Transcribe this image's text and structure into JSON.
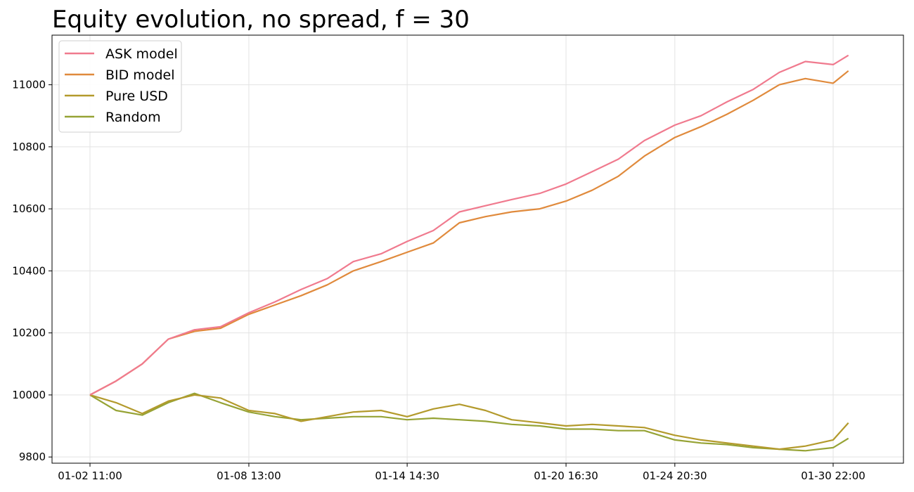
{
  "chart_data": {
    "type": "line",
    "title": "Equity evolution, no spread, f = 30",
    "xlabel": "",
    "ylabel": "",
    "x_ticks": [
      "01-02 11:00",
      "01-08 13:00",
      "01-14 14:30",
      "01-20 16:30",
      "01-24 20:30",
      "01-30 22:00"
    ],
    "y_ticks": [
      9800,
      10000,
      10200,
      10400,
      10600,
      10800,
      11000
    ],
    "ylim": [
      9780,
      11160
    ],
    "grid": true,
    "legend_position": "top-left",
    "series": [
      {
        "name": "ASK model",
        "color": "#f07a8e",
        "x": [
          "01-02 11:00",
          "01-03 11:00",
          "01-04 11:00",
          "01-05 11:00",
          "01-06 11:00",
          "01-07 11:00",
          "01-08 13:00",
          "01-09 13:00",
          "01-10 13:00",
          "01-11 13:00",
          "01-12 13:00",
          "01-13 14:30",
          "01-14 14:30",
          "01-15 14:30",
          "01-16 14:30",
          "01-17 14:30",
          "01-18 14:30",
          "01-19 16:30",
          "01-20 16:30",
          "01-21 16:30",
          "01-22 16:30",
          "01-23 16:30",
          "01-24 20:30",
          "01-25 20:30",
          "01-26 20:30",
          "01-27 20:30",
          "01-28 20:30",
          "01-29 20:30",
          "01-30 22:00",
          "01-31 12:00"
        ],
        "values": [
          10000,
          10045,
          10100,
          10180,
          10210,
          10220,
          10265,
          10300,
          10340,
          10375,
          10430,
          10455,
          10495,
          10530,
          10590,
          10610,
          10630,
          10650,
          10680,
          10720,
          10760,
          10820,
          10870,
          10900,
          10945,
          10985,
          11040,
          11075,
          11065,
          11095
        ]
      },
      {
        "name": "BID model",
        "color": "#e08a3c",
        "x": [
          "01-02 11:00",
          "01-03 11:00",
          "01-04 11:00",
          "01-05 11:00",
          "01-06 11:00",
          "01-07 11:00",
          "01-08 13:00",
          "01-09 13:00",
          "01-10 13:00",
          "01-11 13:00",
          "01-12 13:00",
          "01-13 14:30",
          "01-14 14:30",
          "01-15 14:30",
          "01-16 14:30",
          "01-17 14:30",
          "01-18 14:30",
          "01-19 16:30",
          "01-20 16:30",
          "01-21 16:30",
          "01-22 16:30",
          "01-23 16:30",
          "01-24 20:30",
          "01-25 20:30",
          "01-26 20:30",
          "01-27 20:30",
          "01-28 20:30",
          "01-29 20:30",
          "01-30 22:00",
          "01-31 12:00"
        ],
        "values": [
          10000,
          10045,
          10100,
          10180,
          10205,
          10215,
          10260,
          10290,
          10320,
          10355,
          10400,
          10430,
          10460,
          10490,
          10555,
          10575,
          10590,
          10600,
          10625,
          10660,
          10705,
          10770,
          10830,
          10865,
          10905,
          10950,
          11000,
          11020,
          11005,
          11045
        ]
      },
      {
        "name": "Pure USD",
        "color": "#b39a2c",
        "x": [
          "01-02 11:00",
          "01-03 11:00",
          "01-04 11:00",
          "01-05 11:00",
          "01-06 11:00",
          "01-07 11:00",
          "01-08 13:00",
          "01-09 13:00",
          "01-10 13:00",
          "01-11 13:00",
          "01-12 13:00",
          "01-13 14:30",
          "01-14 14:30",
          "01-15 14:30",
          "01-16 14:30",
          "01-17 14:30",
          "01-18 14:30",
          "01-19 16:30",
          "01-20 16:30",
          "01-21 16:30",
          "01-22 16:30",
          "01-23 16:30",
          "01-24 20:30",
          "01-25 20:30",
          "01-26 20:30",
          "01-27 20:30",
          "01-28 20:30",
          "01-29 20:30",
          "01-30 22:00",
          "01-31 12:00"
        ],
        "values": [
          10000,
          9975,
          9940,
          9980,
          10000,
          9990,
          9950,
          9940,
          9915,
          9930,
          9945,
          9950,
          9930,
          9955,
          9970,
          9950,
          9920,
          9910,
          9900,
          9905,
          9900,
          9895,
          9870,
          9855,
          9845,
          9835,
          9825,
          9835,
          9855,
          9910
        ]
      },
      {
        "name": "Random",
        "color": "#96a335",
        "x": [
          "01-02 11:00",
          "01-03 11:00",
          "01-04 11:00",
          "01-05 11:00",
          "01-06 11:00",
          "01-07 11:00",
          "01-08 13:00",
          "01-09 13:00",
          "01-10 13:00",
          "01-11 13:00",
          "01-12 13:00",
          "01-13 14:30",
          "01-14 14:30",
          "01-15 14:30",
          "01-16 14:30",
          "01-17 14:30",
          "01-18 14:30",
          "01-19 16:30",
          "01-20 16:30",
          "01-21 16:30",
          "01-22 16:30",
          "01-23 16:30",
          "01-24 20:30",
          "01-25 20:30",
          "01-26 20:30",
          "01-27 20:30",
          "01-28 20:30",
          "01-29 20:30",
          "01-30 22:00",
          "01-31 12:00"
        ],
        "values": [
          10000,
          9950,
          9935,
          9975,
          10005,
          9975,
          9945,
          9930,
          9920,
          9925,
          9930,
          9930,
          9920,
          9925,
          9920,
          9915,
          9905,
          9900,
          9890,
          9890,
          9885,
          9885,
          9855,
          9845,
          9840,
          9830,
          9825,
          9820,
          9830,
          9860
        ]
      }
    ]
  }
}
